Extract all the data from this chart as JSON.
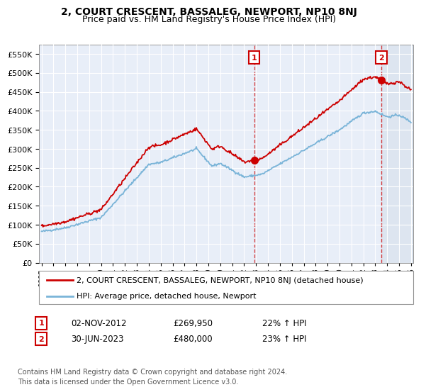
{
  "title": "2, COURT CRESCENT, BASSALEG, NEWPORT, NP10 8NJ",
  "subtitle": "Price paid vs. HM Land Registry's House Price Index (HPI)",
  "xlim_start": 1994.8,
  "xlim_end": 2026.2,
  "ylim_min": 0,
  "ylim_max": 575000,
  "yticks": [
    0,
    50000,
    100000,
    150000,
    200000,
    250000,
    300000,
    350000,
    400000,
    450000,
    500000,
    550000
  ],
  "xticks": [
    1995,
    1996,
    1997,
    1998,
    1999,
    2000,
    2001,
    2002,
    2003,
    2004,
    2005,
    2006,
    2007,
    2008,
    2009,
    2010,
    2011,
    2012,
    2013,
    2014,
    2015,
    2016,
    2017,
    2018,
    2019,
    2020,
    2021,
    2022,
    2023,
    2024,
    2025,
    2026
  ],
  "sale1_x": 2012.84,
  "sale1_y": 269950,
  "sale1_label": "1",
  "sale1_date": "02-NOV-2012",
  "sale1_price": "£269,950",
  "sale1_hpi": "22% ↑ HPI",
  "sale2_x": 2023.5,
  "sale2_y": 480000,
  "sale2_label": "2",
  "sale2_date": "30-JUN-2023",
  "sale2_price": "£480,000",
  "sale2_hpi": "23% ↑ HPI",
  "legend_line1": "2, COURT CRESCENT, BASSALEG, NEWPORT, NP10 8NJ (detached house)",
  "legend_line2": "HPI: Average price, detached house, Newport",
  "footnote1": "Contains HM Land Registry data © Crown copyright and database right 2024.",
  "footnote2": "This data is licensed under the Open Government Licence v3.0.",
  "hpi_color": "#7ab4d8",
  "price_color": "#cc0000",
  "bg_color": "#e8eef8",
  "grid_color": "#ffffff"
}
